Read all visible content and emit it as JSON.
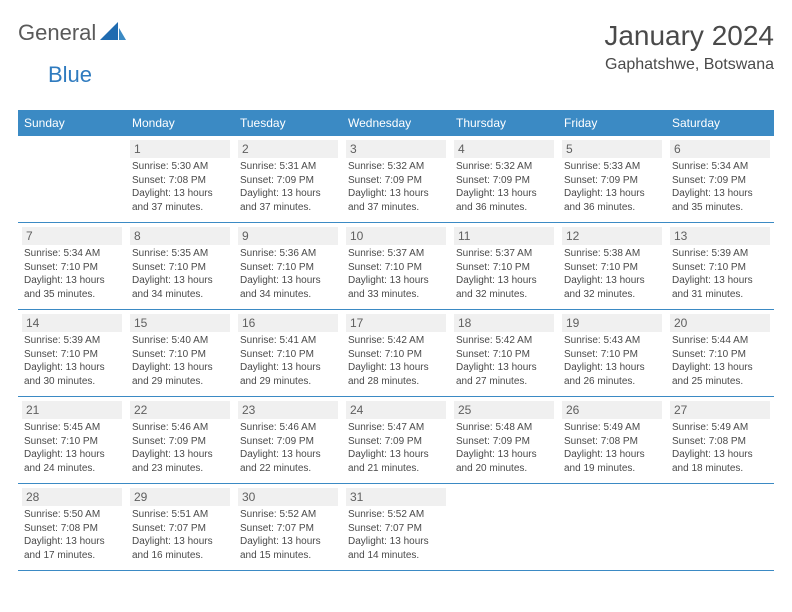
{
  "brand": {
    "part1": "General",
    "part2": "Blue"
  },
  "title": "January 2024",
  "location": "Gaphatshwe, Botswana",
  "colors": {
    "header_bg": "#3b8ac4",
    "header_fg": "#ffffff",
    "daynum_bg": "#f0f0f0",
    "text": "#4a4a4a",
    "rule": "#3b8ac4",
    "brand_blue": "#2f7bbf"
  },
  "weekdays": [
    "Sunday",
    "Monday",
    "Tuesday",
    "Wednesday",
    "Thursday",
    "Friday",
    "Saturday"
  ],
  "start_offset": 1,
  "days": [
    {
      "n": 1,
      "sr": "5:30 AM",
      "ss": "7:08 PM",
      "dl": "13 hours and 37 minutes."
    },
    {
      "n": 2,
      "sr": "5:31 AM",
      "ss": "7:09 PM",
      "dl": "13 hours and 37 minutes."
    },
    {
      "n": 3,
      "sr": "5:32 AM",
      "ss": "7:09 PM",
      "dl": "13 hours and 37 minutes."
    },
    {
      "n": 4,
      "sr": "5:32 AM",
      "ss": "7:09 PM",
      "dl": "13 hours and 36 minutes."
    },
    {
      "n": 5,
      "sr": "5:33 AM",
      "ss": "7:09 PM",
      "dl": "13 hours and 36 minutes."
    },
    {
      "n": 6,
      "sr": "5:34 AM",
      "ss": "7:09 PM",
      "dl": "13 hours and 35 minutes."
    },
    {
      "n": 7,
      "sr": "5:34 AM",
      "ss": "7:10 PM",
      "dl": "13 hours and 35 minutes."
    },
    {
      "n": 8,
      "sr": "5:35 AM",
      "ss": "7:10 PM",
      "dl": "13 hours and 34 minutes."
    },
    {
      "n": 9,
      "sr": "5:36 AM",
      "ss": "7:10 PM",
      "dl": "13 hours and 34 minutes."
    },
    {
      "n": 10,
      "sr": "5:37 AM",
      "ss": "7:10 PM",
      "dl": "13 hours and 33 minutes."
    },
    {
      "n": 11,
      "sr": "5:37 AM",
      "ss": "7:10 PM",
      "dl": "13 hours and 32 minutes."
    },
    {
      "n": 12,
      "sr": "5:38 AM",
      "ss": "7:10 PM",
      "dl": "13 hours and 32 minutes."
    },
    {
      "n": 13,
      "sr": "5:39 AM",
      "ss": "7:10 PM",
      "dl": "13 hours and 31 minutes."
    },
    {
      "n": 14,
      "sr": "5:39 AM",
      "ss": "7:10 PM",
      "dl": "13 hours and 30 minutes."
    },
    {
      "n": 15,
      "sr": "5:40 AM",
      "ss": "7:10 PM",
      "dl": "13 hours and 29 minutes."
    },
    {
      "n": 16,
      "sr": "5:41 AM",
      "ss": "7:10 PM",
      "dl": "13 hours and 29 minutes."
    },
    {
      "n": 17,
      "sr": "5:42 AM",
      "ss": "7:10 PM",
      "dl": "13 hours and 28 minutes."
    },
    {
      "n": 18,
      "sr": "5:42 AM",
      "ss": "7:10 PM",
      "dl": "13 hours and 27 minutes."
    },
    {
      "n": 19,
      "sr": "5:43 AM",
      "ss": "7:10 PM",
      "dl": "13 hours and 26 minutes."
    },
    {
      "n": 20,
      "sr": "5:44 AM",
      "ss": "7:10 PM",
      "dl": "13 hours and 25 minutes."
    },
    {
      "n": 21,
      "sr": "5:45 AM",
      "ss": "7:10 PM",
      "dl": "13 hours and 24 minutes."
    },
    {
      "n": 22,
      "sr": "5:46 AM",
      "ss": "7:09 PM",
      "dl": "13 hours and 23 minutes."
    },
    {
      "n": 23,
      "sr": "5:46 AM",
      "ss": "7:09 PM",
      "dl": "13 hours and 22 minutes."
    },
    {
      "n": 24,
      "sr": "5:47 AM",
      "ss": "7:09 PM",
      "dl": "13 hours and 21 minutes."
    },
    {
      "n": 25,
      "sr": "5:48 AM",
      "ss": "7:09 PM",
      "dl": "13 hours and 20 minutes."
    },
    {
      "n": 26,
      "sr": "5:49 AM",
      "ss": "7:08 PM",
      "dl": "13 hours and 19 minutes."
    },
    {
      "n": 27,
      "sr": "5:49 AM",
      "ss": "7:08 PM",
      "dl": "13 hours and 18 minutes."
    },
    {
      "n": 28,
      "sr": "5:50 AM",
      "ss": "7:08 PM",
      "dl": "13 hours and 17 minutes."
    },
    {
      "n": 29,
      "sr": "5:51 AM",
      "ss": "7:07 PM",
      "dl": "13 hours and 16 minutes."
    },
    {
      "n": 30,
      "sr": "5:52 AM",
      "ss": "7:07 PM",
      "dl": "13 hours and 15 minutes."
    },
    {
      "n": 31,
      "sr": "5:52 AM",
      "ss": "7:07 PM",
      "dl": "13 hours and 14 minutes."
    }
  ],
  "labels": {
    "sunrise": "Sunrise:",
    "sunset": "Sunset:",
    "daylight": "Daylight:"
  }
}
